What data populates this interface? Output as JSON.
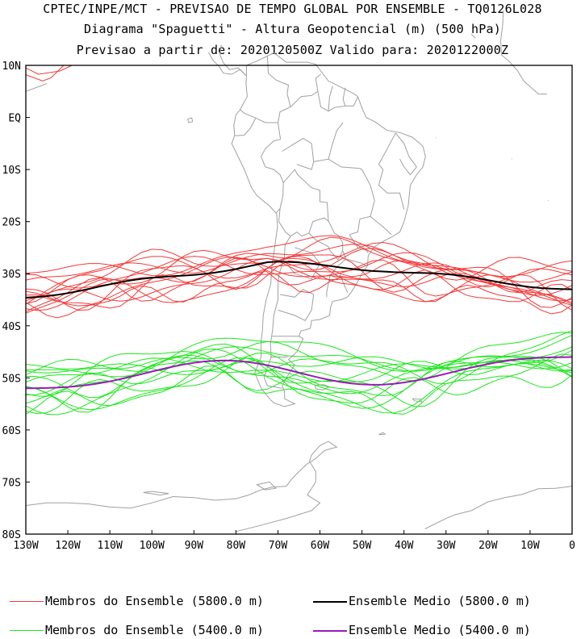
{
  "header": {
    "line1": "CPTEC/INPE/MCT - PREVISAO DE TEMPO GLOBAL POR ENSEMBLE - TQ0126L028",
    "line2": "Diagrama \"Spaguetti\" - Altura Geopotencial (m) (500 hPa)",
    "line3": "Previsao a partir de: 2020120500Z  Valido para: 2020122000Z"
  },
  "map": {
    "lon_range": [
      -130,
      0
    ],
    "lat_range": [
      -80,
      10
    ],
    "y_ticks": [
      "10N",
      "EQ",
      "10S",
      "20S",
      "30S",
      "40S",
      "50S",
      "60S",
      "70S",
      "80S"
    ],
    "x_ticks": [
      "130W",
      "120W",
      "110W",
      "100W",
      "90W",
      "80W",
      "70W",
      "60W",
      "50W",
      "40W",
      "30W",
      "20W",
      "10W",
      "0"
    ],
    "colors": {
      "coast": "#a0a0a0",
      "member_5800": "#f23a3a",
      "mean_5800": "#000000",
      "member_5400": "#1ee61e",
      "mean_5400": "#9a1ab8"
    }
  },
  "legend": {
    "members_5800": "Membros do Ensemble (5800.0 m)",
    "mean_5800": "Ensemble Medio (5800.0 m)",
    "members_5400": "Membros do Ensemble (5400.0 m)",
    "mean_5400": "Ensemble Medio (5400.0 m)"
  }
}
